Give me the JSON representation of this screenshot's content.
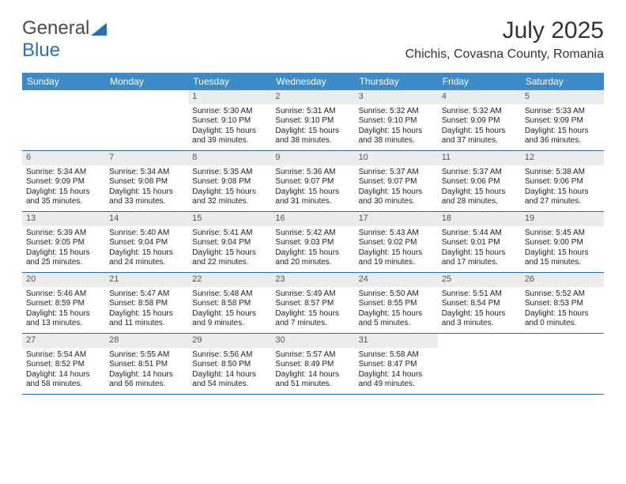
{
  "logo": {
    "part1": "General",
    "part2": "Blue"
  },
  "header": {
    "month_title": "July 2025",
    "location": "Chichis, Covasna County, Romania"
  },
  "colors": {
    "header_bg": "#3b8bc9",
    "border": "#2a6fb0",
    "daynum_bg": "#ececec"
  },
  "day_names": [
    "Sunday",
    "Monday",
    "Tuesday",
    "Wednesday",
    "Thursday",
    "Friday",
    "Saturday"
  ],
  "weeks": [
    [
      null,
      null,
      {
        "n": "1",
        "sr": "Sunrise: 5:30 AM",
        "ss": "Sunset: 9:10 PM",
        "d1": "Daylight: 15 hours",
        "d2": "and 39 minutes."
      },
      {
        "n": "2",
        "sr": "Sunrise: 5:31 AM",
        "ss": "Sunset: 9:10 PM",
        "d1": "Daylight: 15 hours",
        "d2": "and 38 minutes."
      },
      {
        "n": "3",
        "sr": "Sunrise: 5:32 AM",
        "ss": "Sunset: 9:10 PM",
        "d1": "Daylight: 15 hours",
        "d2": "and 38 minutes."
      },
      {
        "n": "4",
        "sr": "Sunrise: 5:32 AM",
        "ss": "Sunset: 9:09 PM",
        "d1": "Daylight: 15 hours",
        "d2": "and 37 minutes."
      },
      {
        "n": "5",
        "sr": "Sunrise: 5:33 AM",
        "ss": "Sunset: 9:09 PM",
        "d1": "Daylight: 15 hours",
        "d2": "and 36 minutes."
      }
    ],
    [
      {
        "n": "6",
        "sr": "Sunrise: 5:34 AM",
        "ss": "Sunset: 9:09 PM",
        "d1": "Daylight: 15 hours",
        "d2": "and 35 minutes."
      },
      {
        "n": "7",
        "sr": "Sunrise: 5:34 AM",
        "ss": "Sunset: 9:08 PM",
        "d1": "Daylight: 15 hours",
        "d2": "and 33 minutes."
      },
      {
        "n": "8",
        "sr": "Sunrise: 5:35 AM",
        "ss": "Sunset: 9:08 PM",
        "d1": "Daylight: 15 hours",
        "d2": "and 32 minutes."
      },
      {
        "n": "9",
        "sr": "Sunrise: 5:36 AM",
        "ss": "Sunset: 9:07 PM",
        "d1": "Daylight: 15 hours",
        "d2": "and 31 minutes."
      },
      {
        "n": "10",
        "sr": "Sunrise: 5:37 AM",
        "ss": "Sunset: 9:07 PM",
        "d1": "Daylight: 15 hours",
        "d2": "and 30 minutes."
      },
      {
        "n": "11",
        "sr": "Sunrise: 5:37 AM",
        "ss": "Sunset: 9:06 PM",
        "d1": "Daylight: 15 hours",
        "d2": "and 28 minutes."
      },
      {
        "n": "12",
        "sr": "Sunrise: 5:38 AM",
        "ss": "Sunset: 9:06 PM",
        "d1": "Daylight: 15 hours",
        "d2": "and 27 minutes."
      }
    ],
    [
      {
        "n": "13",
        "sr": "Sunrise: 5:39 AM",
        "ss": "Sunset: 9:05 PM",
        "d1": "Daylight: 15 hours",
        "d2": "and 25 minutes."
      },
      {
        "n": "14",
        "sr": "Sunrise: 5:40 AM",
        "ss": "Sunset: 9:04 PM",
        "d1": "Daylight: 15 hours",
        "d2": "and 24 minutes."
      },
      {
        "n": "15",
        "sr": "Sunrise: 5:41 AM",
        "ss": "Sunset: 9:04 PM",
        "d1": "Daylight: 15 hours",
        "d2": "and 22 minutes."
      },
      {
        "n": "16",
        "sr": "Sunrise: 5:42 AM",
        "ss": "Sunset: 9:03 PM",
        "d1": "Daylight: 15 hours",
        "d2": "and 20 minutes."
      },
      {
        "n": "17",
        "sr": "Sunrise: 5:43 AM",
        "ss": "Sunset: 9:02 PM",
        "d1": "Daylight: 15 hours",
        "d2": "and 19 minutes."
      },
      {
        "n": "18",
        "sr": "Sunrise: 5:44 AM",
        "ss": "Sunset: 9:01 PM",
        "d1": "Daylight: 15 hours",
        "d2": "and 17 minutes."
      },
      {
        "n": "19",
        "sr": "Sunrise: 5:45 AM",
        "ss": "Sunset: 9:00 PM",
        "d1": "Daylight: 15 hours",
        "d2": "and 15 minutes."
      }
    ],
    [
      {
        "n": "20",
        "sr": "Sunrise: 5:46 AM",
        "ss": "Sunset: 8:59 PM",
        "d1": "Daylight: 15 hours",
        "d2": "and 13 minutes."
      },
      {
        "n": "21",
        "sr": "Sunrise: 5:47 AM",
        "ss": "Sunset: 8:58 PM",
        "d1": "Daylight: 15 hours",
        "d2": "and 11 minutes."
      },
      {
        "n": "22",
        "sr": "Sunrise: 5:48 AM",
        "ss": "Sunset: 8:58 PM",
        "d1": "Daylight: 15 hours",
        "d2": "and 9 minutes."
      },
      {
        "n": "23",
        "sr": "Sunrise: 5:49 AM",
        "ss": "Sunset: 8:57 PM",
        "d1": "Daylight: 15 hours",
        "d2": "and 7 minutes."
      },
      {
        "n": "24",
        "sr": "Sunrise: 5:50 AM",
        "ss": "Sunset: 8:55 PM",
        "d1": "Daylight: 15 hours",
        "d2": "and 5 minutes."
      },
      {
        "n": "25",
        "sr": "Sunrise: 5:51 AM",
        "ss": "Sunset: 8:54 PM",
        "d1": "Daylight: 15 hours",
        "d2": "and 3 minutes."
      },
      {
        "n": "26",
        "sr": "Sunrise: 5:52 AM",
        "ss": "Sunset: 8:53 PM",
        "d1": "Daylight: 15 hours",
        "d2": "and 0 minutes."
      }
    ],
    [
      {
        "n": "27",
        "sr": "Sunrise: 5:54 AM",
        "ss": "Sunset: 8:52 PM",
        "d1": "Daylight: 14 hours",
        "d2": "and 58 minutes."
      },
      {
        "n": "28",
        "sr": "Sunrise: 5:55 AM",
        "ss": "Sunset: 8:51 PM",
        "d1": "Daylight: 14 hours",
        "d2": "and 56 minutes."
      },
      {
        "n": "29",
        "sr": "Sunrise: 5:56 AM",
        "ss": "Sunset: 8:50 PM",
        "d1": "Daylight: 14 hours",
        "d2": "and 54 minutes."
      },
      {
        "n": "30",
        "sr": "Sunrise: 5:57 AM",
        "ss": "Sunset: 8:49 PM",
        "d1": "Daylight: 14 hours",
        "d2": "and 51 minutes."
      },
      {
        "n": "31",
        "sr": "Sunrise: 5:58 AM",
        "ss": "Sunset: 8:47 PM",
        "d1": "Daylight: 14 hours",
        "d2": "and 49 minutes."
      },
      null,
      null
    ]
  ]
}
